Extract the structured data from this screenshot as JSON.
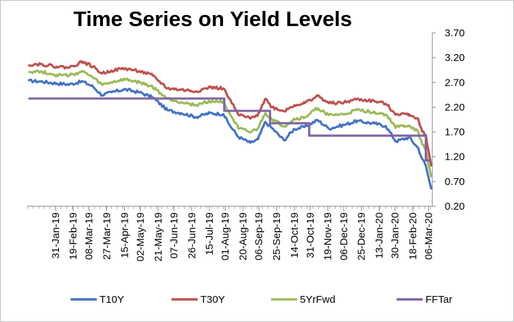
{
  "chart_data": {
    "type": "line",
    "title": "Time Series on Yield Levels",
    "ylim": [
      0.2,
      3.7
    ],
    "yticks": [
      "3.70",
      "3.20",
      "2.70",
      "2.20",
      "1.70",
      "1.20",
      "0.70",
      "0.20"
    ],
    "ytick_values": [
      3.7,
      3.2,
      2.7,
      2.2,
      1.7,
      1.2,
      0.7,
      0.2
    ],
    "xlim": [
      "2019-01-01",
      "2020-03-10"
    ],
    "xtick_labels": [
      "31-Jan-19",
      "19-Feb-19",
      "08-Mar-19",
      "27-Mar-19",
      "15-Apr-19",
      "02-May-19",
      "21-May-19",
      "07-Jun-19",
      "26-Jun-19",
      "15-Jul-19",
      "01-Aug-19",
      "20-Aug-19",
      "06-Sep-19",
      "25-Sep-19",
      "14-Oct-19",
      "31-Oct-19",
      "19-Nov-19",
      "06-Dec-19",
      "25-Dec-19",
      "13-Jan-20",
      "30-Jan-20",
      "18-Feb-20",
      "06-Mar-20"
    ],
    "xtick_dates": [
      "2019-01-31",
      "2019-02-19",
      "2019-03-08",
      "2019-03-27",
      "2019-04-15",
      "2019-05-02",
      "2019-05-21",
      "2019-06-07",
      "2019-06-26",
      "2019-07-15",
      "2019-08-01",
      "2019-08-20",
      "2019-09-06",
      "2019-09-25",
      "2019-10-14",
      "2019-10-31",
      "2019-11-19",
      "2019-12-06",
      "2019-12-25",
      "2020-01-13",
      "2020-01-30",
      "2020-02-18",
      "2020-03-06"
    ],
    "grid": false,
    "legend_position": "bottom",
    "series": [
      {
        "name": "T10Y",
        "color": "#4472c4",
        "x": [
          "2019-01-02",
          "2019-01-15",
          "2019-02-01",
          "2019-02-15",
          "2019-03-01",
          "2019-03-12",
          "2019-03-22",
          "2019-04-01",
          "2019-04-15",
          "2019-05-01",
          "2019-05-15",
          "2019-05-31",
          "2019-06-15",
          "2019-07-01",
          "2019-07-15",
          "2019-07-30",
          "2019-08-05",
          "2019-08-15",
          "2019-08-28",
          "2019-09-05",
          "2019-09-13",
          "2019-09-20",
          "2019-10-03",
          "2019-10-14",
          "2019-10-25",
          "2019-11-08",
          "2019-11-20",
          "2019-12-06",
          "2019-12-20",
          "2020-01-08",
          "2020-01-20",
          "2020-01-31",
          "2020-02-14",
          "2020-02-24",
          "2020-02-28",
          "2020-03-03",
          "2020-03-06",
          "2020-03-09"
        ],
        "values": [
          2.73,
          2.72,
          2.68,
          2.66,
          2.72,
          2.62,
          2.44,
          2.5,
          2.56,
          2.5,
          2.4,
          2.14,
          2.08,
          2.0,
          2.08,
          2.06,
          1.86,
          1.6,
          1.48,
          1.55,
          1.9,
          1.78,
          1.53,
          1.76,
          1.8,
          1.94,
          1.77,
          1.84,
          1.92,
          1.87,
          1.82,
          1.51,
          1.59,
          1.37,
          1.16,
          1.02,
          0.77,
          0.54
        ]
      },
      {
        "name": "T30Y",
        "color": "#c0504d",
        "x": [
          "2019-01-02",
          "2019-01-15",
          "2019-02-01",
          "2019-02-15",
          "2019-03-01",
          "2019-03-12",
          "2019-03-22",
          "2019-04-01",
          "2019-04-15",
          "2019-05-01",
          "2019-05-15",
          "2019-05-31",
          "2019-06-15",
          "2019-07-01",
          "2019-07-15",
          "2019-07-30",
          "2019-08-05",
          "2019-08-15",
          "2019-08-28",
          "2019-09-05",
          "2019-09-13",
          "2019-09-20",
          "2019-10-03",
          "2019-10-14",
          "2019-10-25",
          "2019-11-08",
          "2019-11-20",
          "2019-12-06",
          "2019-12-20",
          "2020-01-08",
          "2020-01-20",
          "2020-01-31",
          "2020-02-14",
          "2020-02-24",
          "2020-02-28",
          "2020-03-03",
          "2020-03-06",
          "2020-03-09"
        ],
        "values": [
          3.06,
          3.07,
          3.02,
          3.0,
          3.12,
          3.02,
          2.88,
          2.94,
          2.98,
          2.93,
          2.84,
          2.58,
          2.55,
          2.52,
          2.6,
          2.58,
          2.38,
          2.05,
          1.97,
          2.06,
          2.37,
          2.2,
          2.12,
          2.24,
          2.28,
          2.43,
          2.28,
          2.29,
          2.36,
          2.32,
          2.27,
          2.06,
          2.06,
          1.96,
          1.71,
          1.64,
          1.31,
          1.0
        ]
      },
      {
        "name": "5YrFwd",
        "color": "#9bbb59",
        "x": [
          "2019-01-02",
          "2019-01-15",
          "2019-02-01",
          "2019-02-15",
          "2019-03-01",
          "2019-03-12",
          "2019-03-22",
          "2019-04-01",
          "2019-04-15",
          "2019-05-01",
          "2019-05-15",
          "2019-05-31",
          "2019-06-15",
          "2019-07-01",
          "2019-07-15",
          "2019-07-30",
          "2019-08-05",
          "2019-08-15",
          "2019-08-28",
          "2019-09-05",
          "2019-09-13",
          "2019-09-20",
          "2019-10-03",
          "2019-10-14",
          "2019-10-25",
          "2019-11-08",
          "2019-11-20",
          "2019-12-06",
          "2019-12-20",
          "2020-01-08",
          "2020-01-20",
          "2020-01-31",
          "2020-02-14",
          "2020-02-24",
          "2020-02-28",
          "2020-03-03",
          "2020-03-06",
          "2020-03-09"
        ],
        "values": [
          2.92,
          2.92,
          2.85,
          2.84,
          2.92,
          2.8,
          2.65,
          2.7,
          2.76,
          2.7,
          2.61,
          2.37,
          2.3,
          2.24,
          2.32,
          2.31,
          2.1,
          1.77,
          1.69,
          1.77,
          2.08,
          1.96,
          1.81,
          1.96,
          1.99,
          2.18,
          2.04,
          2.05,
          2.14,
          2.1,
          2.05,
          1.8,
          1.83,
          1.7,
          1.45,
          1.34,
          1.03,
          0.78
        ]
      },
      {
        "name": "FFTar",
        "color": "#8064a2",
        "x": [
          "2019-01-02",
          "2019-07-31",
          "2019-07-31",
          "2019-09-18",
          "2019-09-18",
          "2019-10-30",
          "2019-10-30",
          "2020-03-03",
          "2020-03-03",
          "2020-03-09"
        ],
        "values": [
          2.375,
          2.375,
          2.125,
          2.125,
          1.875,
          1.875,
          1.625,
          1.625,
          1.125,
          1.125
        ]
      }
    ]
  }
}
